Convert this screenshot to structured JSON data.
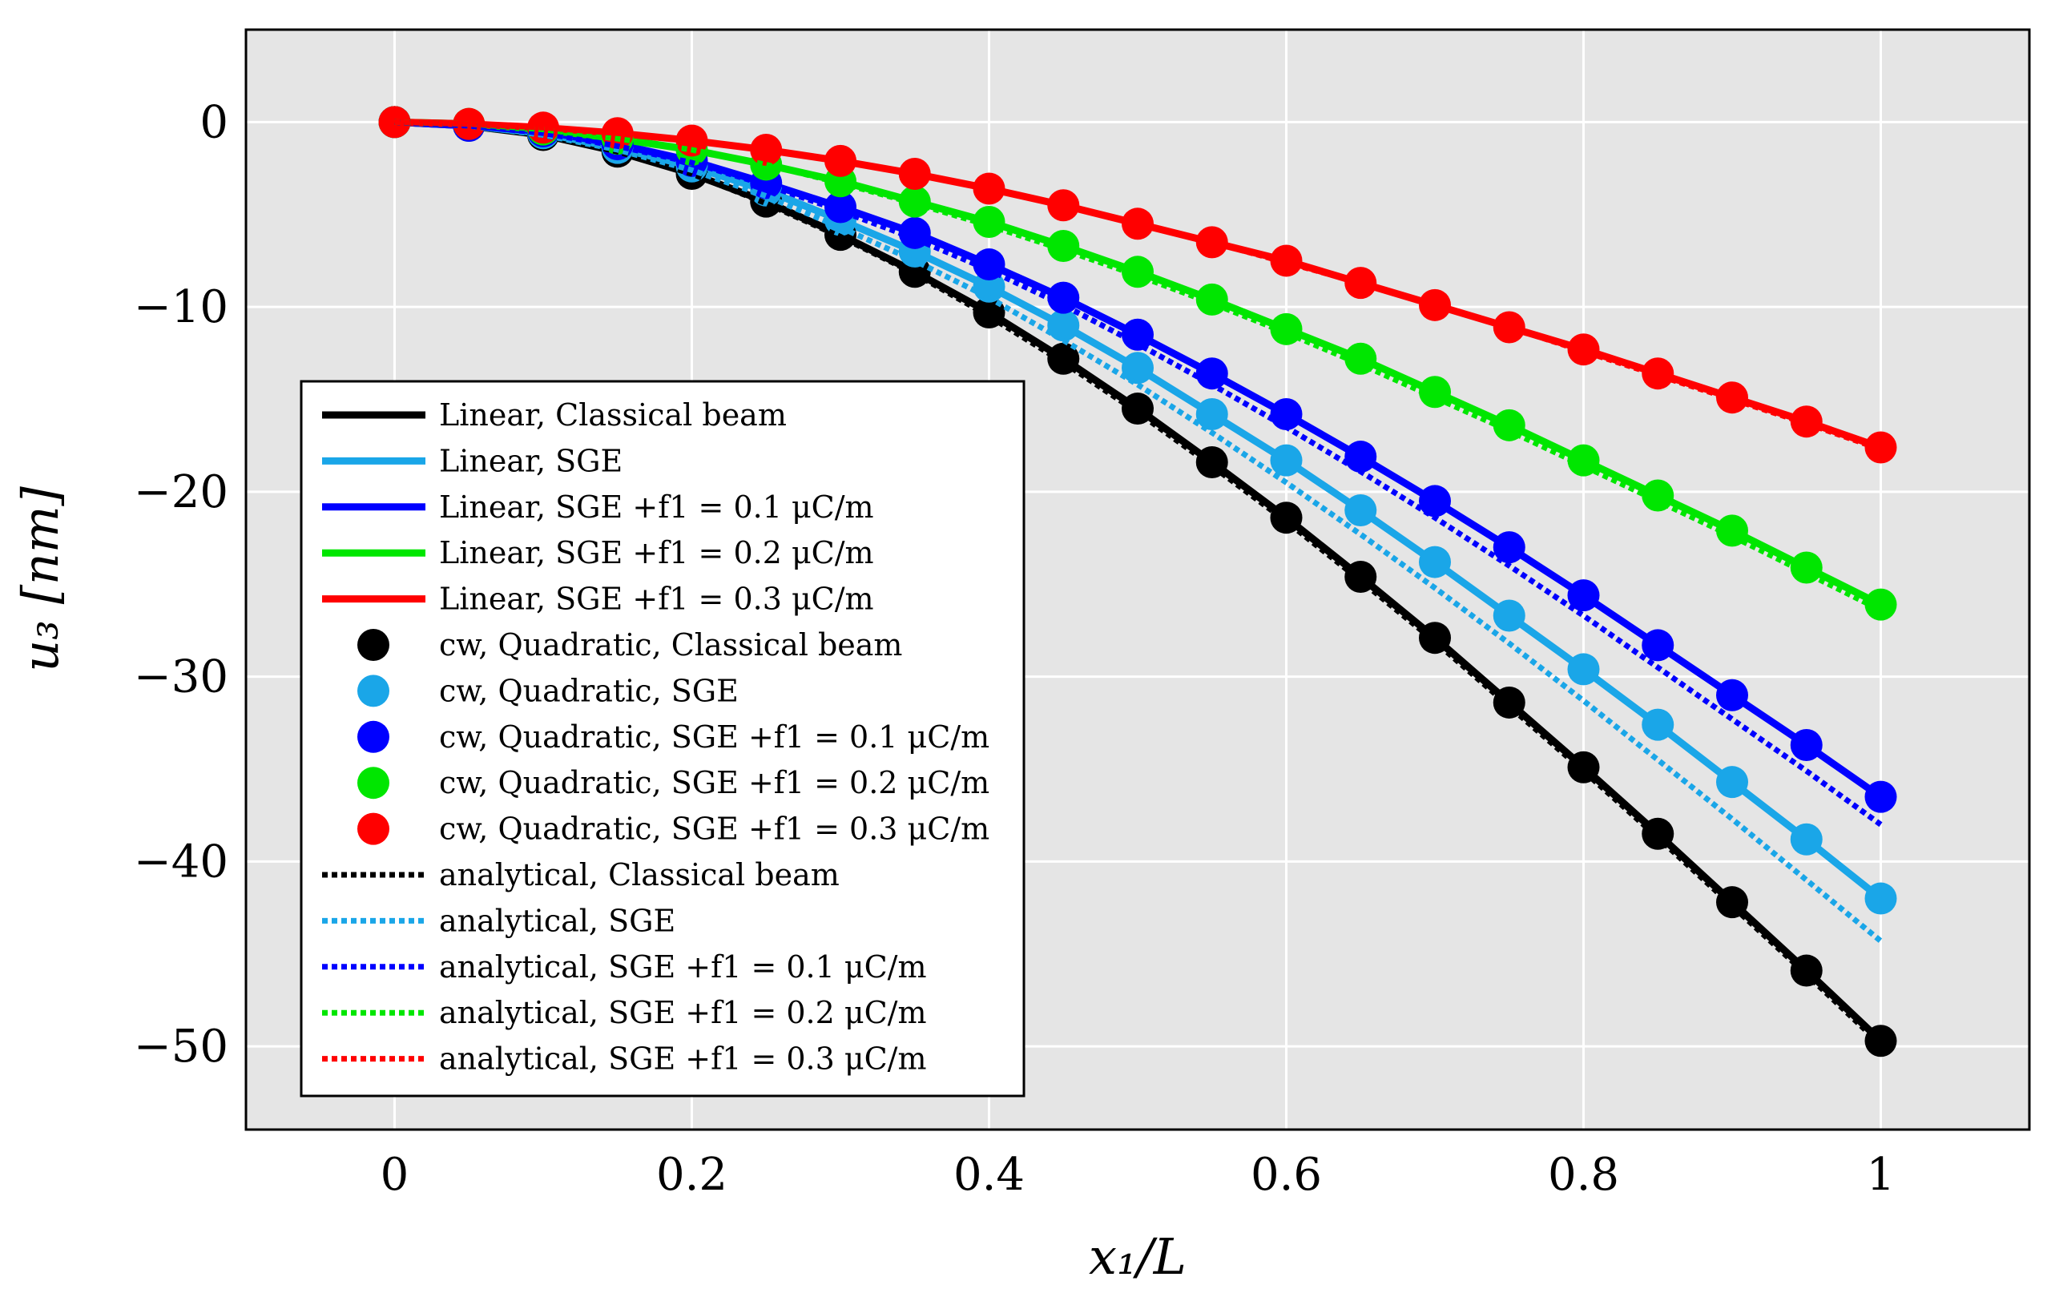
{
  "chart_data": {
    "type": "line",
    "xlabel": "x₁/L",
    "ylabel": "u₃ [nm]",
    "xlim": [
      -0.1,
      1.1
    ],
    "ylim": [
      -54.5,
      5
    ],
    "xticks": [
      0,
      0.2,
      0.4,
      0.6,
      0.8,
      1
    ],
    "xtick_labels": [
      "0",
      "0.2",
      "0.4",
      "0.6",
      "0.8",
      "1"
    ],
    "yticks": [
      0,
      -10,
      -20,
      -30,
      -40,
      -50
    ],
    "ytick_labels": [
      "0",
      "−10",
      "−20",
      "−30",
      "−40",
      "−50"
    ],
    "grid": true,
    "legend_position": "left-middle",
    "x": [
      0,
      0.05,
      0.1,
      0.15,
      0.2,
      0.25,
      0.3,
      0.35,
      0.4,
      0.45,
      0.5,
      0.55,
      0.6,
      0.65,
      0.7,
      0.75,
      0.8,
      0.85,
      0.9,
      0.95,
      1.0
    ],
    "series": [
      {
        "name": "Linear, Classical beam",
        "style": "solid",
        "color": "#000000",
        "values": [
          0,
          -0.2,
          -0.7,
          -1.6,
          -2.8,
          -4.3,
          -6.1,
          -8.1,
          -10.3,
          -12.8,
          -15.5,
          -18.4,
          -21.4,
          -24.6,
          -27.9,
          -31.4,
          -34.9,
          -38.5,
          -42.2,
          -45.9,
          -49.7
        ]
      },
      {
        "name": "Linear, SGE",
        "style": "solid",
        "color": "#1aa6e8",
        "values": [
          0,
          -0.2,
          -0.6,
          -1.4,
          -2.4,
          -3.7,
          -5.3,
          -7.0,
          -8.9,
          -11.0,
          -13.3,
          -15.8,
          -18.3,
          -21.0,
          -23.8,
          -26.7,
          -29.6,
          -32.6,
          -35.7,
          -38.8,
          -42.0
        ]
      },
      {
        "name": "Linear, SGE +f1 = 0.1 μC/m",
        "style": "solid",
        "color": "#0000ff",
        "values": [
          0,
          -0.2,
          -0.5,
          -1.2,
          -2.1,
          -3.3,
          -4.6,
          -6.0,
          -7.7,
          -9.5,
          -11.5,
          -13.6,
          -15.8,
          -18.1,
          -20.5,
          -23.0,
          -25.6,
          -28.3,
          -31.0,
          -33.7,
          -36.5
        ]
      },
      {
        "name": "Linear, SGE +f1 = 0.2 μC/m",
        "style": "solid",
        "color": "#00e600",
        "values": [
          0,
          -0.1,
          -0.4,
          -0.9,
          -1.5,
          -2.3,
          -3.2,
          -4.3,
          -5.4,
          -6.7,
          -8.1,
          -9.6,
          -11.2,
          -12.8,
          -14.6,
          -16.4,
          -18.3,
          -20.2,
          -22.1,
          -24.1,
          -26.1
        ]
      },
      {
        "name": "Linear, SGE +f1 = 0.3 μC/m",
        "style": "solid",
        "color": "#ff0000",
        "values": [
          0,
          -0.1,
          -0.3,
          -0.6,
          -1.0,
          -1.5,
          -2.1,
          -2.8,
          -3.6,
          -4.5,
          -5.5,
          -6.5,
          -7.5,
          -8.7,
          -9.9,
          -11.1,
          -12.3,
          -13.6,
          -14.9,
          -16.2,
          -17.6
        ]
      },
      {
        "name": "cw, Quadratic, Classical beam",
        "style": "markers",
        "color": "#000000",
        "values": [
          0,
          -0.2,
          -0.7,
          -1.6,
          -2.8,
          -4.3,
          -6.1,
          -8.1,
          -10.3,
          -12.8,
          -15.5,
          -18.4,
          -21.4,
          -24.6,
          -27.9,
          -31.4,
          -34.9,
          -38.5,
          -42.2,
          -45.9,
          -49.7
        ]
      },
      {
        "name": "cw, Quadratic, SGE",
        "style": "markers",
        "color": "#1aa6e8",
        "values": [
          0,
          -0.2,
          -0.6,
          -1.4,
          -2.4,
          -3.7,
          -5.3,
          -7.0,
          -8.9,
          -11.0,
          -13.3,
          -15.8,
          -18.3,
          -21.0,
          -23.8,
          -26.7,
          -29.6,
          -32.6,
          -35.7,
          -38.8,
          -42.0
        ]
      },
      {
        "name": "cw, Quadratic, SGE +f1 = 0.1 μC/m",
        "style": "markers",
        "color": "#0000ff",
        "values": [
          0,
          -0.2,
          -0.5,
          -1.2,
          -2.1,
          -3.3,
          -4.6,
          -6.0,
          -7.7,
          -9.5,
          -11.5,
          -13.6,
          -15.8,
          -18.1,
          -20.5,
          -23.0,
          -25.6,
          -28.3,
          -31.0,
          -33.7,
          -36.5
        ]
      },
      {
        "name": "cw, Quadratic, SGE +f1 = 0.2 μC/m",
        "style": "markers",
        "color": "#00e600",
        "values": [
          0,
          -0.1,
          -0.4,
          -0.9,
          -1.5,
          -2.3,
          -3.2,
          -4.3,
          -5.4,
          -6.7,
          -8.1,
          -9.6,
          -11.2,
          -12.8,
          -14.6,
          -16.4,
          -18.3,
          -20.2,
          -22.1,
          -24.1,
          -26.1
        ]
      },
      {
        "name": "cw, Quadratic, SGE +f1 = 0.3 μC/m",
        "style": "markers",
        "color": "#ff0000",
        "values": [
          0,
          -0.1,
          -0.3,
          -0.6,
          -1.0,
          -1.5,
          -2.1,
          -2.8,
          -3.6,
          -4.5,
          -5.5,
          -6.5,
          -7.5,
          -8.7,
          -9.9,
          -11.1,
          -12.3,
          -13.6,
          -14.9,
          -16.2,
          -17.6
        ]
      },
      {
        "name": "analytical, Classical beam",
        "style": "dotted",
        "color": "#000000",
        "values": [
          0,
          -0.2,
          -0.7,
          -1.6,
          -2.8,
          -4.4,
          -6.2,
          -8.2,
          -10.5,
          -13.0,
          -15.7,
          -18.6,
          -21.6,
          -24.8,
          -28.1,
          -31.6,
          -35.1,
          -38.7,
          -42.4,
          -46.1,
          -49.9
        ]
      },
      {
        "name": "analytical, SGE",
        "style": "dotted",
        "color": "#1aa6e8",
        "values": [
          0,
          -0.2,
          -0.7,
          -1.5,
          -2.6,
          -4.0,
          -5.7,
          -7.5,
          -9.5,
          -11.8,
          -14.2,
          -16.8,
          -19.5,
          -22.3,
          -25.2,
          -28.2,
          -31.3,
          -34.5,
          -37.7,
          -41.0,
          -44.3
        ]
      },
      {
        "name": "analytical, SGE +f1 = 0.1 μC/m",
        "style": "dotted",
        "color": "#0000ff",
        "values": [
          0,
          -0.2,
          -0.6,
          -1.3,
          -2.2,
          -3.4,
          -4.8,
          -6.3,
          -8.0,
          -9.9,
          -12.0,
          -14.2,
          -16.5,
          -18.9,
          -21.4,
          -24.0,
          -26.7,
          -29.5,
          -32.3,
          -35.1,
          -38.0
        ]
      },
      {
        "name": "analytical, SGE +f1 = 0.2 μC/m",
        "style": "dotted",
        "color": "#00e600",
        "values": [
          0,
          -0.1,
          -0.4,
          -0.9,
          -1.5,
          -2.3,
          -3.3,
          -4.4,
          -5.6,
          -6.9,
          -8.3,
          -9.8,
          -11.4,
          -13.1,
          -14.9,
          -16.7,
          -18.6,
          -20.5,
          -22.4,
          -24.4,
          -26.4
        ]
      },
      {
        "name": "analytical, SGE +f1 = 0.3 μC/m",
        "style": "dotted",
        "color": "#ff0000",
        "values": [
          0,
          -0.1,
          -0.3,
          -0.6,
          -1.0,
          -1.5,
          -2.1,
          -2.8,
          -3.6,
          -4.5,
          -5.5,
          -6.5,
          -7.6,
          -8.7,
          -9.9,
          -11.1,
          -12.4,
          -13.7,
          -15.0,
          -16.3,
          -17.7
        ]
      }
    ]
  }
}
